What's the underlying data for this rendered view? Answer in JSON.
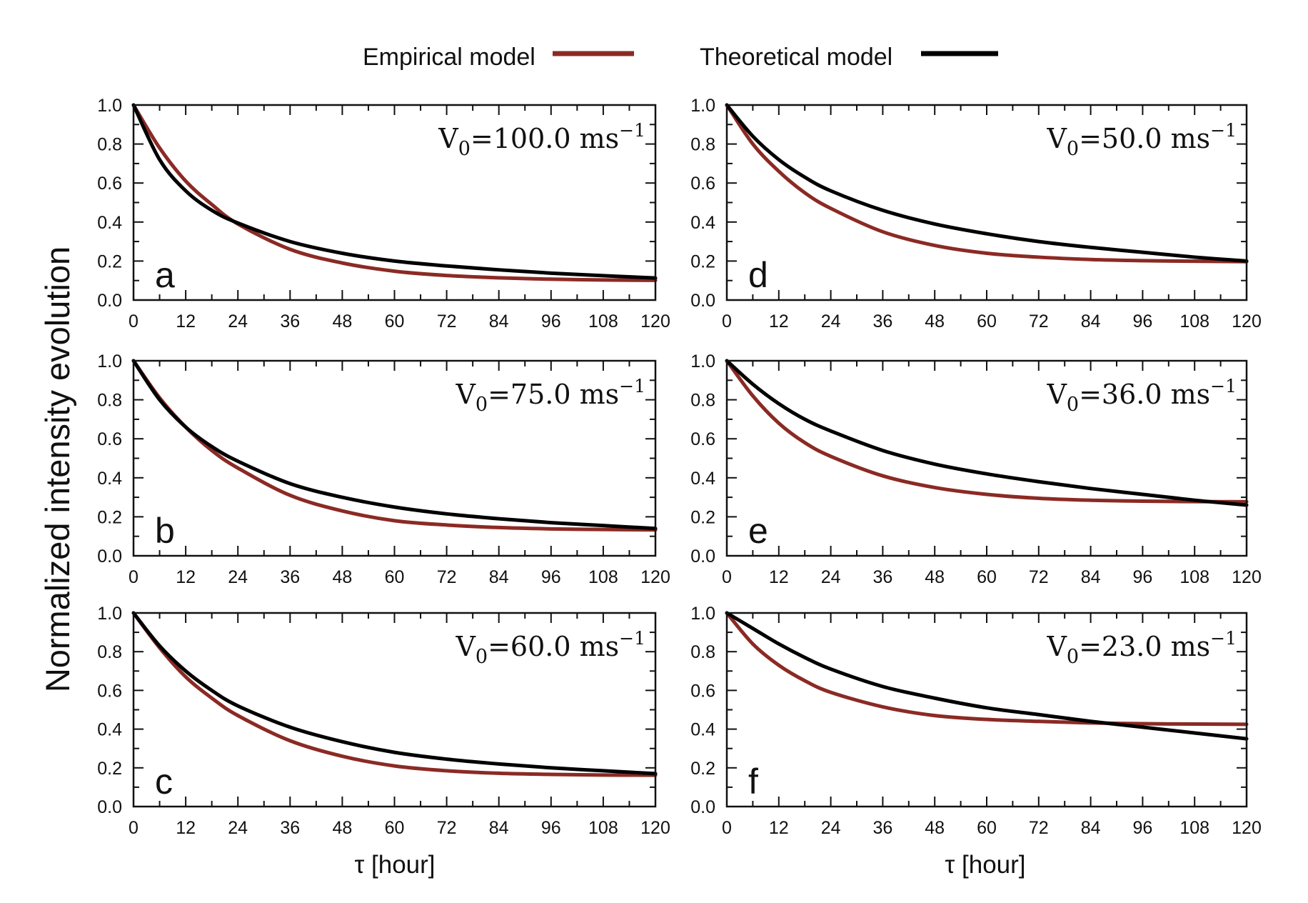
{
  "legend": [
    {
      "label": "Empirical model",
      "color": "#8b2a24"
    },
    {
      "label": "Theoretical model",
      "color": "#000000"
    }
  ],
  "ylabel": "Normalized intensity evolution",
  "xlabel": "τ [hour]",
  "chart_data": [
    {
      "type": "line",
      "panel": "a",
      "annotation": {
        "V": "V",
        "sub": "0",
        "value": "=100.0 ms",
        "sup": "−1"
      },
      "xlim": [
        0,
        120
      ],
      "ylim": [
        0,
        1
      ],
      "xticks": [
        "0",
        "12",
        "24",
        "36",
        "48",
        "60",
        "72",
        "84",
        "96",
        "108",
        "120"
      ],
      "yticks": [
        "0.0",
        "0.2",
        "0.4",
        "0.6",
        "0.8",
        "1.0"
      ],
      "x": [
        0,
        6,
        12,
        18,
        24,
        36,
        48,
        60,
        72,
        84,
        96,
        108,
        120
      ],
      "series": [
        {
          "name": "Empirical model",
          "color": "#8b2a24",
          "values": [
            1.0,
            0.78,
            0.61,
            0.49,
            0.39,
            0.26,
            0.19,
            0.148,
            0.126,
            0.114,
            0.107,
            0.103,
            0.101
          ]
        },
        {
          "name": "Theoretical model",
          "color": "#000000",
          "values": [
            1.0,
            0.72,
            0.56,
            0.46,
            0.395,
            0.3,
            0.24,
            0.2,
            0.175,
            0.155,
            0.138,
            0.125,
            0.113
          ]
        }
      ]
    },
    {
      "type": "line",
      "panel": "b",
      "annotation": {
        "V": "V",
        "sub": "0",
        "value": "=75.0 ms",
        "sup": "−1"
      },
      "xlim": [
        0,
        120
      ],
      "ylim": [
        0,
        1
      ],
      "xticks": [
        "0",
        "12",
        "24",
        "36",
        "48",
        "60",
        "72",
        "84",
        "96",
        "108",
        "120"
      ],
      "yticks": [
        "0.0",
        "0.2",
        "0.4",
        "0.6",
        "0.8",
        "1.0"
      ],
      "x": [
        0,
        6,
        12,
        18,
        24,
        36,
        48,
        60,
        72,
        84,
        96,
        108,
        120
      ],
      "series": [
        {
          "name": "Empirical model",
          "color": "#8b2a24",
          "values": [
            1.0,
            0.81,
            0.66,
            0.54,
            0.45,
            0.31,
            0.23,
            0.18,
            0.158,
            0.145,
            0.138,
            0.135,
            0.133
          ]
        },
        {
          "name": "Theoretical model",
          "color": "#000000",
          "values": [
            1.0,
            0.8,
            0.66,
            0.56,
            0.485,
            0.37,
            0.3,
            0.25,
            0.215,
            0.19,
            0.17,
            0.155,
            0.14
          ]
        }
      ]
    },
    {
      "type": "line",
      "panel": "c",
      "annotation": {
        "V": "V",
        "sub": "0",
        "value": "=60.0 ms",
        "sup": "−1"
      },
      "xlim": [
        0,
        120
      ],
      "ylim": [
        0,
        1
      ],
      "xticks": [
        "0",
        "12",
        "24",
        "36",
        "48",
        "60",
        "72",
        "84",
        "96",
        "108",
        "120"
      ],
      "yticks": [
        "0.0",
        "0.2",
        "0.4",
        "0.6",
        "0.8",
        "1.0"
      ],
      "x": [
        0,
        6,
        12,
        18,
        24,
        36,
        48,
        60,
        72,
        84,
        96,
        108,
        120
      ],
      "series": [
        {
          "name": "Empirical model",
          "color": "#8b2a24",
          "values": [
            1.0,
            0.82,
            0.67,
            0.56,
            0.47,
            0.34,
            0.26,
            0.21,
            0.185,
            0.172,
            0.166,
            0.163,
            0.162
          ]
        },
        {
          "name": "Theoretical model",
          "color": "#000000",
          "values": [
            1.0,
            0.83,
            0.7,
            0.6,
            0.52,
            0.41,
            0.335,
            0.28,
            0.245,
            0.22,
            0.2,
            0.185,
            0.17
          ]
        }
      ]
    },
    {
      "type": "line",
      "panel": "d",
      "annotation": {
        "V": "V",
        "sub": "0",
        "value": "=50.0 ms",
        "sup": "−1"
      },
      "xlim": [
        0,
        120
      ],
      "ylim": [
        0,
        1
      ],
      "xticks": [
        "0",
        "12",
        "24",
        "36",
        "48",
        "60",
        "72",
        "84",
        "96",
        "108",
        "120"
      ],
      "yticks": [
        "0.0",
        "0.2",
        "0.4",
        "0.6",
        "0.8",
        "1.0"
      ],
      "x": [
        0,
        6,
        12,
        18,
        24,
        36,
        48,
        60,
        72,
        84,
        96,
        108,
        120
      ],
      "series": [
        {
          "name": "Empirical model",
          "color": "#8b2a24",
          "values": [
            1.0,
            0.8,
            0.66,
            0.55,
            0.47,
            0.35,
            0.28,
            0.24,
            0.22,
            0.208,
            0.202,
            0.199,
            0.197
          ]
        },
        {
          "name": "Theoretical model",
          "color": "#000000",
          "values": [
            1.0,
            0.84,
            0.72,
            0.63,
            0.56,
            0.46,
            0.39,
            0.34,
            0.3,
            0.27,
            0.245,
            0.22,
            0.2
          ]
        }
      ]
    },
    {
      "type": "line",
      "panel": "e",
      "annotation": {
        "V": "V",
        "sub": "0",
        "value": "=36.0 ms",
        "sup": "−1"
      },
      "xlim": [
        0,
        120
      ],
      "ylim": [
        0,
        1
      ],
      "xticks": [
        "0",
        "12",
        "24",
        "36",
        "48",
        "60",
        "72",
        "84",
        "96",
        "108",
        "120"
      ],
      "yticks": [
        "0.0",
        "0.2",
        "0.4",
        "0.6",
        "0.8",
        "1.0"
      ],
      "x": [
        0,
        6,
        12,
        18,
        24,
        36,
        48,
        60,
        72,
        84,
        96,
        108,
        120
      ],
      "series": [
        {
          "name": "Empirical model",
          "color": "#8b2a24",
          "values": [
            1.0,
            0.82,
            0.68,
            0.58,
            0.51,
            0.41,
            0.35,
            0.315,
            0.295,
            0.285,
            0.28,
            0.278,
            0.277
          ]
        },
        {
          "name": "Theoretical model",
          "color": "#000000",
          "values": [
            1.0,
            0.88,
            0.78,
            0.7,
            0.64,
            0.54,
            0.47,
            0.42,
            0.38,
            0.345,
            0.315,
            0.285,
            0.26
          ]
        }
      ]
    },
    {
      "type": "line",
      "panel": "f",
      "annotation": {
        "V": "V",
        "sub": "0",
        "value": "=23.0 ms",
        "sup": "−1"
      },
      "xlim": [
        0,
        120
      ],
      "ylim": [
        0,
        1
      ],
      "xticks": [
        "0",
        "12",
        "24",
        "36",
        "48",
        "60",
        "72",
        "84",
        "96",
        "108",
        "120"
      ],
      "yticks": [
        "0.0",
        "0.2",
        "0.4",
        "0.6",
        "0.8",
        "1.0"
      ],
      "x": [
        0,
        6,
        12,
        18,
        24,
        36,
        48,
        60,
        72,
        84,
        96,
        108,
        120
      ],
      "series": [
        {
          "name": "Empirical model",
          "color": "#8b2a24",
          "values": [
            1.0,
            0.84,
            0.73,
            0.65,
            0.59,
            0.515,
            0.47,
            0.45,
            0.44,
            0.432,
            0.428,
            0.426,
            0.425
          ]
        },
        {
          "name": "Theoretical model",
          "color": "#000000",
          "values": [
            1.0,
            0.92,
            0.84,
            0.77,
            0.71,
            0.62,
            0.56,
            0.51,
            0.475,
            0.44,
            0.41,
            0.38,
            0.35
          ]
        }
      ]
    }
  ]
}
